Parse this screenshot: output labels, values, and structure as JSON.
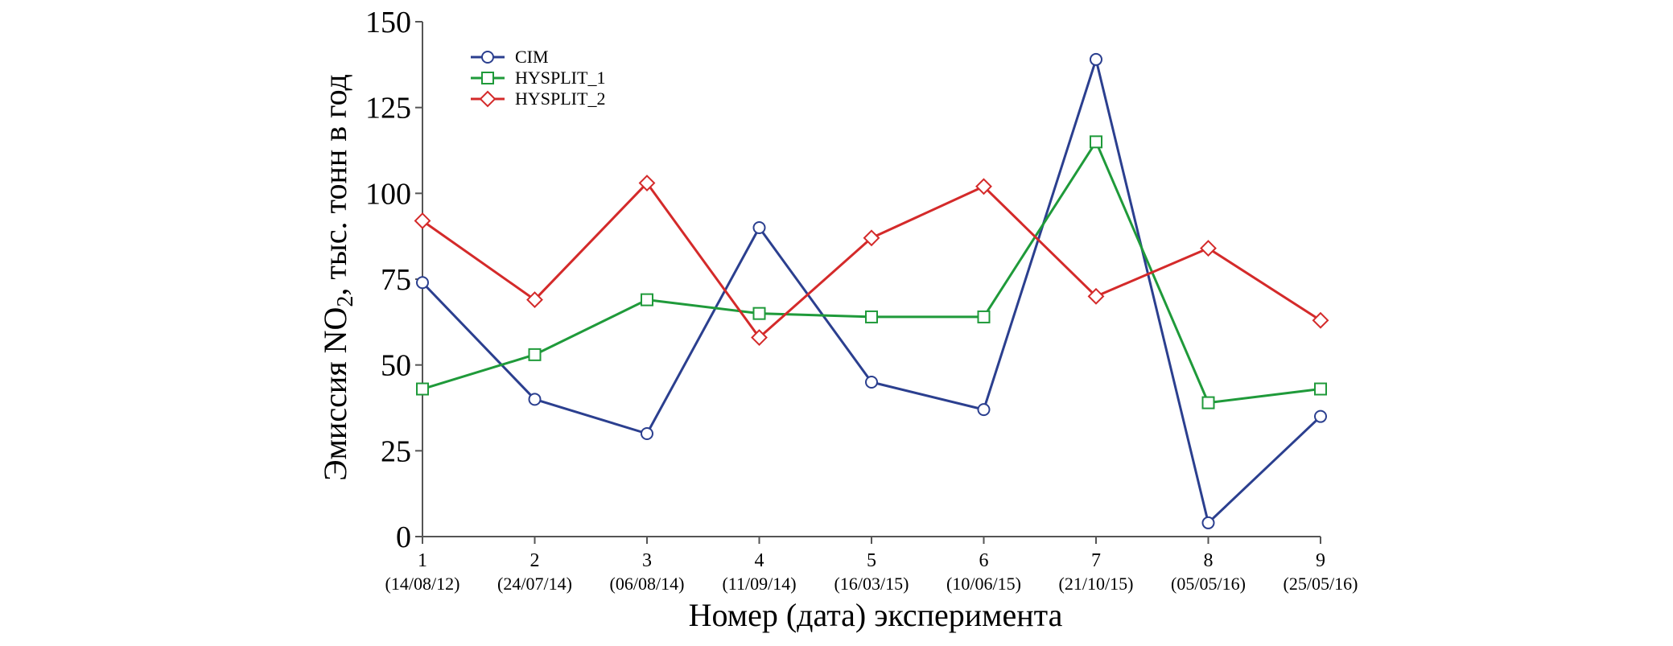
{
  "chart_data": {
    "type": "line",
    "title": "",
    "xlabel": "Номер (дата) эксперимента",
    "ylabel_parts": {
      "before": "Эмиссия NO",
      "sub": "2",
      "after": ", тыс. тонн в год"
    },
    "ylim": [
      0,
      150
    ],
    "yticks": [
      0,
      25,
      50,
      75,
      100,
      125,
      150
    ],
    "x": [
      1,
      2,
      3,
      4,
      5,
      6,
      7,
      8,
      9
    ],
    "x_tick_numbers": [
      "1",
      "2",
      "3",
      "4",
      "5",
      "6",
      "7",
      "8",
      "9"
    ],
    "x_tick_dates": [
      "(14/08/12)",
      "(24/07/14)",
      "(06/08/14)",
      "(11/09/14)",
      "(16/03/15)",
      "(10/06/15)",
      "(21/10/15)",
      "(05/05/16)",
      "(25/05/16)"
    ],
    "grid": false,
    "legend_position": "top-left",
    "series": [
      {
        "name": "CIM",
        "marker": "circle",
        "color": "#2b3f8f",
        "values": [
          74,
          40,
          30,
          90,
          45,
          37,
          139,
          4,
          35
        ]
      },
      {
        "name": "HYSPLIT_1",
        "marker": "square",
        "color": "#1f9a3a",
        "values": [
          43,
          53,
          69,
          65,
          64,
          64,
          115,
          39,
          43
        ]
      },
      {
        "name": "HYSPLIT_2",
        "marker": "diamond",
        "color": "#d42a2a",
        "values": [
          92,
          69,
          103,
          58,
          87,
          102,
          70,
          84,
          63
        ]
      }
    ]
  }
}
